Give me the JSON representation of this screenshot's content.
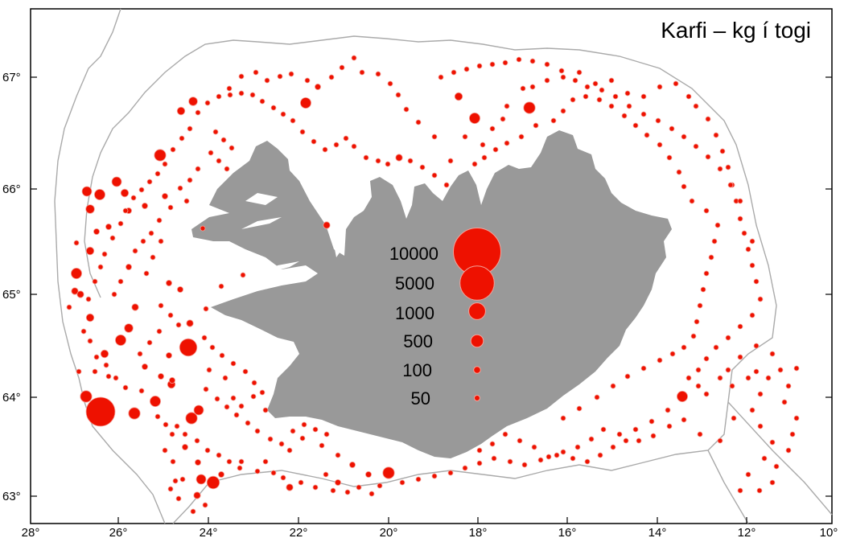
{
  "title": "Karfi – kg í togi",
  "axes": {
    "lat_ticks": [
      "67°",
      "66°",
      "65°",
      "64°",
      "63°"
    ],
    "lon_ticks": [
      "28°",
      "26°",
      "24°",
      "22°",
      "20°",
      "18°",
      "16°",
      "14°",
      "12°",
      "10°"
    ]
  },
  "legend": {
    "items": [
      {
        "label": "10000",
        "value": 10000
      },
      {
        "label": "5000",
        "value": 5000
      },
      {
        "label": "1000",
        "value": 1000
      },
      {
        "label": "500",
        "value": 500
      },
      {
        "label": "100",
        "value": 100
      },
      {
        "label": "50",
        "value": 50
      }
    ]
  },
  "colors": {
    "land": "#999999",
    "bubble_fill": "#ee1100",
    "bubble_stroke": "#f4a39a",
    "contour": "#aaaaaa",
    "frame": "#000000"
  }
}
